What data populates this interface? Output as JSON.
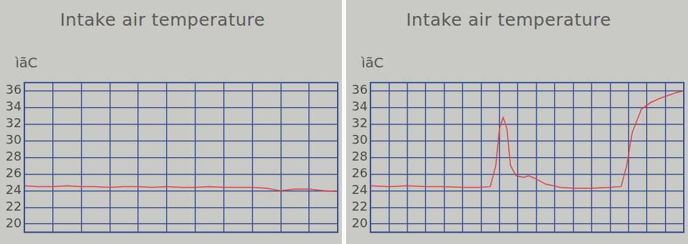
{
  "chart_data": [
    {
      "type": "line",
      "title": "Intake air temperature",
      "subtitle": "ìãC",
      "x": [
        0,
        0.5,
        1,
        1.5,
        2,
        2.5,
        3,
        3.5,
        4,
        4.5,
        5,
        5.5,
        6,
        6.5,
        7,
        7.5,
        8,
        8.5,
        9,
        9.5,
        10,
        10.5,
        11
      ],
      "values": [
        24.6,
        24.5,
        24.5,
        24.6,
        24.5,
        24.5,
        24.4,
        24.5,
        24.5,
        24.4,
        24.5,
        24.4,
        24.4,
        24.5,
        24.4,
        24.4,
        24.4,
        24.3,
        24.0,
        24.2,
        24.2,
        24.0,
        23.9
      ],
      "color": "#d9434a",
      "xlim": [
        0,
        11
      ],
      "xticks": [
        0,
        1,
        2,
        3,
        4,
        5,
        6,
        7,
        8,
        9,
        10,
        11
      ],
      "ylim": [
        19,
        37
      ],
      "yticks": [
        20,
        22,
        24,
        26,
        28,
        30,
        32,
        34,
        36
      ],
      "grid": true,
      "tick_labels": "y"
    },
    {
      "type": "line",
      "title": "Intake air temperature",
      "subtitle": "ìãC",
      "x": [
        0,
        1,
        2,
        3,
        4,
        5,
        6,
        6.5,
        6.8,
        7.0,
        7.2,
        7.4,
        7.6,
        7.9,
        8.3,
        8.6,
        9.0,
        9.5,
        10.3,
        11,
        12,
        13,
        13.6,
        13.9,
        14.2,
        14.7,
        15.2,
        15.7,
        16.2,
        16.6,
        17
      ],
      "values": [
        24.6,
        24.5,
        24.6,
        24.5,
        24.5,
        24.4,
        24.4,
        24.5,
        27,
        31.5,
        32.8,
        31.5,
        27,
        25.8,
        25.6,
        25.8,
        25.4,
        24.8,
        24.4,
        24.3,
        24.3,
        24.4,
        24.5,
        27,
        31,
        33.8,
        34.6,
        35.1,
        35.5,
        35.8,
        36
      ],
      "color": "#d9434a",
      "xlim": [
        0,
        17
      ],
      "xticks": [
        0,
        1,
        2,
        3,
        4,
        5,
        6,
        7,
        8,
        9,
        10,
        11,
        12,
        13,
        14,
        15,
        16,
        17
      ],
      "ylim": [
        19,
        37
      ],
      "yticks": [
        20,
        22,
        24,
        26,
        28,
        30,
        32,
        34,
        36
      ],
      "grid": true,
      "tick_labels": "y"
    }
  ]
}
